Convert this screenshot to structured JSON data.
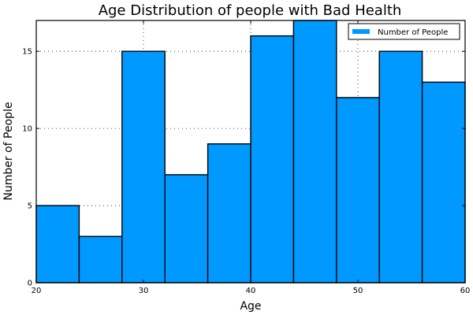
{
  "chart_data": {
    "type": "bar",
    "title": "Age Distribution of people with Bad Health",
    "xlabel": "Age",
    "ylabel": "Number of People",
    "bins": [
      {
        "x0": 20,
        "x1": 24,
        "value": 5
      },
      {
        "x0": 24,
        "x1": 28,
        "value": 3
      },
      {
        "x0": 28,
        "x1": 32,
        "value": 15
      },
      {
        "x0": 32,
        "x1": 36,
        "value": 7
      },
      {
        "x0": 36,
        "x1": 40,
        "value": 9
      },
      {
        "x0": 40,
        "x1": 44,
        "value": 16
      },
      {
        "x0": 44,
        "x1": 48,
        "value": 17
      },
      {
        "x0": 48,
        "x1": 52,
        "value": 12
      },
      {
        "x0": 52,
        "x1": 56,
        "value": 15
      },
      {
        "x0": 56,
        "x1": 60,
        "value": 13
      }
    ],
    "xlim": [
      20,
      60
    ],
    "ylim": [
      0,
      17
    ],
    "xticks": [
      20,
      30,
      40,
      50,
      60
    ],
    "yticks": [
      0,
      5,
      10,
      15
    ],
    "series": [
      {
        "name": "Number of People",
        "color": "#0099ff"
      }
    ],
    "grid": true,
    "legend_position": "top-right"
  }
}
